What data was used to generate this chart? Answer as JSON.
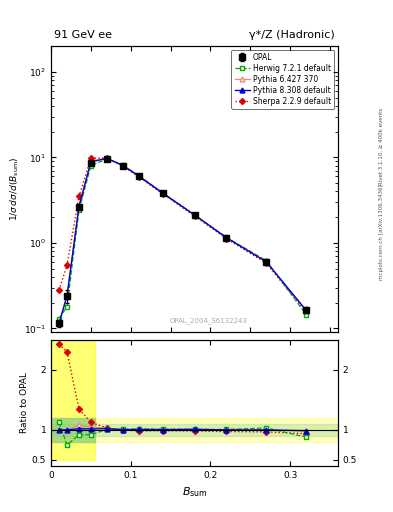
{
  "title_left": "91 GeV ee",
  "title_right": "γ*/Z (Hadronic)",
  "right_label_top": "Rivet 3.1.10, ≥ 400k events",
  "right_label_bottom": "mcplots.cern.ch [arXiv:1306.3436]",
  "watermark": "OPAL_2004_S6132243",
  "xlabel": "B_{sum}",
  "ylabel_top": "1/σ dσ/d(B_sum)",
  "ylabel_bottom": "Ratio to OPAL",
  "bsum": [
    0.01,
    0.02,
    0.035,
    0.05,
    0.07,
    0.09,
    0.11,
    0.14,
    0.18,
    0.22,
    0.27,
    0.32
  ],
  "opal_y": [
    0.115,
    0.24,
    2.6,
    8.7,
    9.5,
    8.0,
    6.0,
    3.8,
    2.1,
    1.15,
    0.6,
    0.165
  ],
  "opal_yerr": [
    0.01,
    0.04,
    0.2,
    0.4,
    0.4,
    0.3,
    0.3,
    0.2,
    0.1,
    0.06,
    0.04,
    0.015
  ],
  "herwig_y": [
    0.13,
    0.18,
    2.4,
    8.0,
    9.6,
    8.1,
    6.1,
    3.85,
    2.12,
    1.16,
    0.62,
    0.145
  ],
  "pythia6_y": [
    0.115,
    0.24,
    2.8,
    9.1,
    9.8,
    8.0,
    6.05,
    3.82,
    2.12,
    1.15,
    0.6,
    0.162
  ],
  "pythia8_y": [
    0.115,
    0.24,
    2.65,
    8.85,
    9.7,
    8.05,
    6.05,
    3.82,
    2.12,
    1.15,
    0.6,
    0.163
  ],
  "sherpa_y": [
    0.28,
    0.55,
    3.5,
    9.8,
    9.8,
    8.0,
    5.9,
    3.75,
    2.06,
    1.12,
    0.58,
    0.155
  ],
  "herwig_ratio": [
    1.13,
    0.75,
    0.92,
    0.92,
    1.01,
    1.01,
    1.017,
    1.013,
    1.01,
    1.009,
    1.033,
    0.88
  ],
  "pythia6_ratio": [
    1.0,
    1.0,
    1.08,
    1.046,
    1.032,
    1.0,
    1.008,
    1.005,
    1.01,
    1.0,
    1.0,
    0.982
  ],
  "pythia8_ratio": [
    1.0,
    1.0,
    1.019,
    1.017,
    1.021,
    1.006,
    1.008,
    1.005,
    1.01,
    1.0,
    1.0,
    0.988
  ],
  "sherpa_ratio": [
    2.43,
    2.3,
    1.35,
    1.126,
    1.032,
    1.0,
    0.983,
    0.987,
    0.981,
    0.974,
    0.967,
    0.939
  ],
  "opal_color": "#000000",
  "herwig_color": "#00aa00",
  "pythia6_color": "#ee8888",
  "pythia8_color": "#0000dd",
  "sherpa_color": "#dd0000"
}
